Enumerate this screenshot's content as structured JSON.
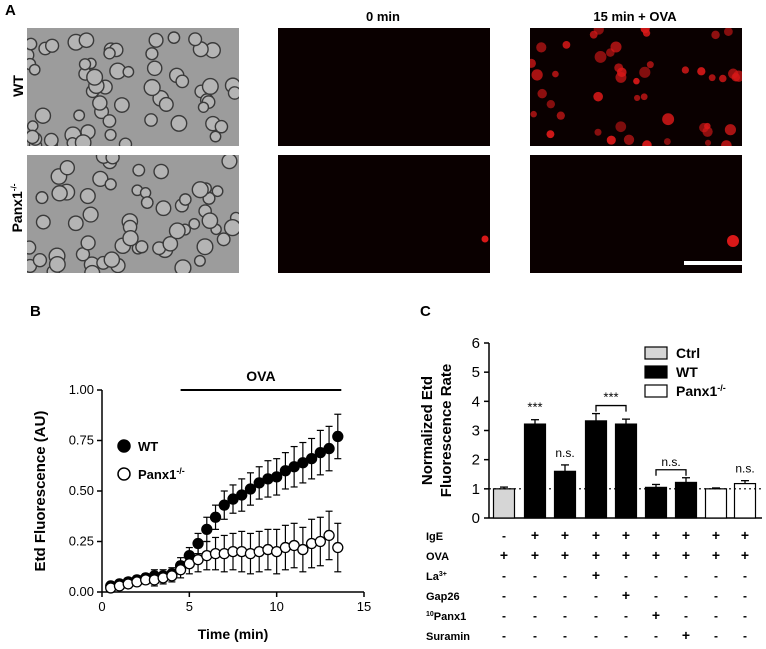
{
  "panel_a": {
    "letter": "A",
    "columns": [
      "",
      "0 min",
      "15 min + OVA"
    ],
    "rows": [
      {
        "label": "WT"
      },
      {
        "label": "Panx1",
        "sup": "-/-"
      }
    ],
    "colors": {
      "bright_field_bg": "#9c9c9c",
      "cell_edge": "#3a3a3a",
      "fluor_bg": "#0a0000",
      "fluor_cell": "#d81818"
    }
  },
  "panel_b": {
    "letter": "B",
    "bar_label": "OVA"
  },
  "panel_c": {
    "letter": "C"
  },
  "chart_data": [
    {
      "type": "scatter",
      "panel": "B",
      "xlabel": "Time (min)",
      "ylabel": "Etd Fluorescence (AU)",
      "xlim": [
        0,
        15
      ],
      "ylim": [
        0,
        1.0
      ],
      "xticks": [
        "0",
        "5",
        "10",
        "15"
      ],
      "yticks": [
        "0.00",
        "0.25",
        "0.50",
        "0.75",
        "1.00"
      ],
      "annotation": "OVA",
      "annotation_x_range": [
        4.5,
        13.7
      ],
      "legend": [
        {
          "name": "WT",
          "marker": "filled-circle"
        },
        {
          "name": "Panx1",
          "sup": "-/-",
          "marker": "open-circle"
        }
      ],
      "series": [
        {
          "name": "WT",
          "x": [
            0.5,
            1.0,
            1.5,
            2.0,
            2.5,
            3.0,
            3.5,
            4.0,
            4.5,
            5.0,
            5.5,
            6.0,
            6.5,
            7.0,
            7.5,
            8.0,
            8.5,
            9.0,
            9.5,
            10.0,
            10.5,
            11.0,
            11.5,
            12.0,
            12.5,
            13.0,
            13.5
          ],
          "y": [
            0.03,
            0.04,
            0.05,
            0.06,
            0.07,
            0.08,
            0.08,
            0.09,
            0.13,
            0.18,
            0.24,
            0.31,
            0.37,
            0.43,
            0.46,
            0.48,
            0.51,
            0.54,
            0.56,
            0.57,
            0.6,
            0.62,
            0.64,
            0.66,
            0.69,
            0.71,
            0.77
          ],
          "err": [
            0.01,
            0.01,
            0.02,
            0.02,
            0.02,
            0.03,
            0.03,
            0.03,
            0.04,
            0.04,
            0.05,
            0.06,
            0.06,
            0.07,
            0.07,
            0.08,
            0.08,
            0.08,
            0.09,
            0.09,
            0.09,
            0.1,
            0.1,
            0.1,
            0.11,
            0.11,
            0.11
          ]
        },
        {
          "name": "Panx1-/-",
          "x": [
            0.5,
            1.0,
            1.5,
            2.0,
            2.5,
            3.0,
            3.5,
            4.0,
            4.5,
            5.0,
            5.5,
            6.0,
            6.5,
            7.0,
            7.5,
            8.0,
            8.5,
            9.0,
            9.5,
            10.0,
            10.5,
            11.0,
            11.5,
            12.0,
            12.5,
            13.0,
            13.5
          ],
          "y": [
            0.02,
            0.03,
            0.04,
            0.05,
            0.06,
            0.06,
            0.07,
            0.08,
            0.11,
            0.14,
            0.16,
            0.18,
            0.19,
            0.19,
            0.2,
            0.2,
            0.19,
            0.2,
            0.21,
            0.2,
            0.22,
            0.23,
            0.21,
            0.24,
            0.25,
            0.28,
            0.22
          ],
          "err": [
            0.01,
            0.01,
            0.02,
            0.02,
            0.02,
            0.03,
            0.03,
            0.03,
            0.04,
            0.05,
            0.06,
            0.07,
            0.08,
            0.09,
            0.09,
            0.1,
            0.1,
            0.1,
            0.1,
            0.11,
            0.11,
            0.11,
            0.11,
            0.12,
            0.12,
            0.12,
            0.12
          ]
        }
      ]
    },
    {
      "type": "bar",
      "panel": "C",
      "ylabel": "Normalized Etd Fluorescence Rate",
      "ylim": [
        0,
        6
      ],
      "yticks": [
        "0",
        "1",
        "2",
        "3",
        "4",
        "5",
        "6"
      ],
      "reference_line": 1,
      "legend": [
        {
          "name": "Ctrl",
          "color": "#d6d6d6"
        },
        {
          "name": "WT",
          "color": "#000000"
        },
        {
          "name": "Panx1",
          "sup": "-/-",
          "color": "#ffffff"
        }
      ],
      "bars": [
        {
          "group": "Ctrl",
          "value": 1.0,
          "err": 0.06
        },
        {
          "group": "WT",
          "value": 3.22,
          "err": 0.15
        },
        {
          "group": "WT",
          "value": 1.6,
          "err": 0.22
        },
        {
          "group": "WT",
          "value": 3.33,
          "err": 0.25
        },
        {
          "group": "WT",
          "value": 3.22,
          "err": 0.17
        },
        {
          "group": "WT",
          "value": 1.05,
          "err": 0.1
        },
        {
          "group": "WT",
          "value": 1.22,
          "err": 0.16
        },
        {
          "group": "Panx1",
          "value": 1.0,
          "err": 0.03
        },
        {
          "group": "Panx1",
          "value": 1.18,
          "err": 0.1
        }
      ],
      "significance": [
        {
          "bars": [
            1
          ],
          "label": "***"
        },
        {
          "bars": [
            2
          ],
          "label": "n.s."
        },
        {
          "bars": [
            3,
            4
          ],
          "label": "***"
        },
        {
          "bars": [
            5,
            6
          ],
          "label": "n.s."
        },
        {
          "bars": [
            8
          ],
          "label": "n.s."
        }
      ],
      "conditions": [
        {
          "name": "IgE",
          "values": [
            "-",
            "+",
            "+",
            "+",
            "+",
            "+",
            "+",
            "+",
            "+"
          ]
        },
        {
          "name": "OVA",
          "values": [
            "+",
            "+",
            "+",
            "+",
            "+",
            "+",
            "+",
            "+",
            "+"
          ]
        },
        {
          "name": "La",
          "sup": "3+",
          "values": [
            "-",
            "-",
            "-",
            "+",
            "-",
            "-",
            "-",
            "-",
            "-"
          ]
        },
        {
          "name": "Gap26",
          "values": [
            "-",
            "-",
            "-",
            "-",
            "+",
            "-",
            "-",
            "-",
            "-"
          ]
        },
        {
          "name": "Panx1",
          "pre": "10",
          "values": [
            "-",
            "-",
            "-",
            "-",
            "-",
            "+",
            "-",
            "-",
            "-"
          ]
        },
        {
          "name": "Suramin",
          "values": [
            "-",
            "-",
            "-",
            "-",
            "-",
            "-",
            "+",
            "-",
            "-"
          ]
        }
      ]
    }
  ]
}
